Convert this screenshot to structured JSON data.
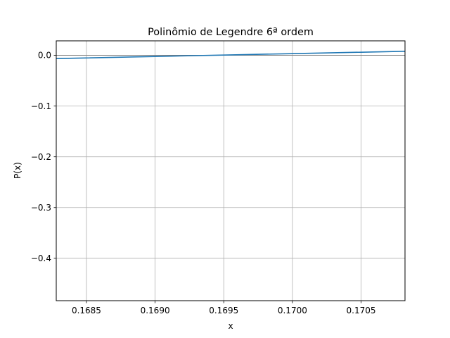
{
  "chart_data": {
    "type": "line",
    "title": "Polinômio de Legendre 6ª ordem",
    "xlabel": "x",
    "ylabel": "P(x)",
    "xlim": [
      0.16828,
      0.17082
    ],
    "ylim": [
      -0.4835,
      0.0285
    ],
    "grid": true,
    "x_ticks": [
      {
        "value": 0.1685,
        "label": "0.1685"
      },
      {
        "value": 0.169,
        "label": "0.1690"
      },
      {
        "value": 0.1695,
        "label": "0.1695"
      },
      {
        "value": 0.17,
        "label": "0.1700"
      },
      {
        "value": 0.1705,
        "label": "0.1705"
      }
    ],
    "y_ticks": [
      {
        "value": 0.0,
        "label": "0.0"
      },
      {
        "value": -0.1,
        "label": "−0.1"
      },
      {
        "value": -0.2,
        "label": "−0.2"
      },
      {
        "value": -0.3,
        "label": "−0.3"
      },
      {
        "value": -0.4,
        "label": "−0.4"
      }
    ],
    "series": [
      {
        "color": "#1f77b4",
        "x": [
          0.16828,
          0.169,
          0.1695,
          0.17,
          0.1705,
          0.17082
        ],
        "y": [
          -0.0065,
          -0.0023,
          0.0005,
          0.0033,
          0.0061,
          0.0079
        ]
      }
    ],
    "reference_line": {
      "y": 0.0,
      "color": "#808080"
    }
  }
}
